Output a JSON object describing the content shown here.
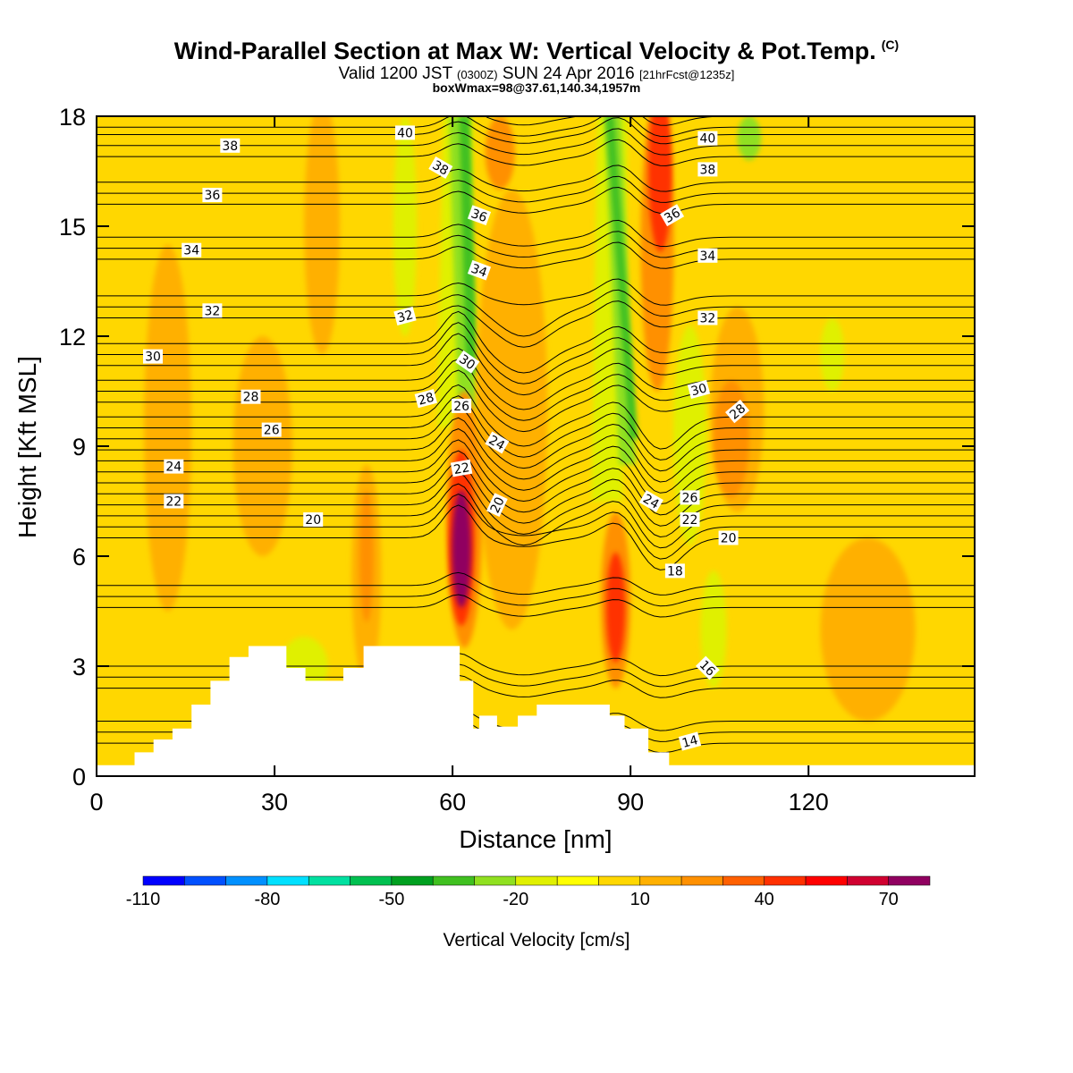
{
  "header": {
    "title": "Wind-Parallel Section at Max W: Vertical Velocity & Pot.Temp.",
    "title_mark": "(C)",
    "subtitle_a": "Valid 1200 JST",
    "subtitle_b": "(0300Z)",
    "subtitle_c": "SUN 24 Apr 2016",
    "subtitle_d": "[21hrFcst@1235z]",
    "subtitle2": "boxWmax=98@37.61,140.34,1957m"
  },
  "chart_data": {
    "type": "heatmap",
    "xlabel": "Distance [nm]",
    "ylabel": "Height [Kft MSL]",
    "xlim": [
      0,
      148
    ],
    "ylim": [
      0,
      18
    ],
    "x_ticks": [
      "0",
      "30",
      "60",
      "90",
      "120"
    ],
    "x_tick_values": [
      0,
      30,
      60,
      90,
      120
    ],
    "y_ticks": [
      "0",
      "3",
      "6",
      "9",
      "12",
      "15",
      "18"
    ],
    "y_tick_values": [
      0,
      3,
      6,
      9,
      12,
      15,
      18
    ],
    "background_level_color": "#ffd700",
    "terrain": [
      {
        "x": 0,
        "h": 0.3
      },
      {
        "x": 6.4,
        "h": 0.3
      },
      {
        "x": 6.4,
        "h": 0.65
      },
      {
        "x": 9.6,
        "h": 0.65
      },
      {
        "x": 9.6,
        "h": 1.0
      },
      {
        "x": 12.8,
        "h": 1.0
      },
      {
        "x": 12.8,
        "h": 1.3
      },
      {
        "x": 16.0,
        "h": 1.3
      },
      {
        "x": 16.0,
        "h": 1.95
      },
      {
        "x": 19.2,
        "h": 1.95
      },
      {
        "x": 19.2,
        "h": 2.6
      },
      {
        "x": 22.4,
        "h": 2.6
      },
      {
        "x": 22.4,
        "h": 3.25
      },
      {
        "x": 25.6,
        "h": 3.25
      },
      {
        "x": 25.6,
        "h": 3.55
      },
      {
        "x": 32.0,
        "h": 3.55
      },
      {
        "x": 32.0,
        "h": 2.95
      },
      {
        "x": 35.2,
        "h": 2.95
      },
      {
        "x": 35.2,
        "h": 2.6
      },
      {
        "x": 41.6,
        "h": 2.6
      },
      {
        "x": 41.6,
        "h": 2.95
      },
      {
        "x": 45.0,
        "h": 2.95
      },
      {
        "x": 45.0,
        "h": 3.55
      },
      {
        "x": 61.2,
        "h": 3.55
      },
      {
        "x": 61.2,
        "h": 2.6
      },
      {
        "x": 63.5,
        "h": 2.6
      },
      {
        "x": 63.5,
        "h": 1.3
      },
      {
        "x": 64.5,
        "h": 1.3
      },
      {
        "x": 64.5,
        "h": 1.65
      },
      {
        "x": 67.5,
        "h": 1.65
      },
      {
        "x": 67.5,
        "h": 1.35
      },
      {
        "x": 71.0,
        "h": 1.35
      },
      {
        "x": 71.0,
        "h": 1.65
      },
      {
        "x": 74.2,
        "h": 1.65
      },
      {
        "x": 74.2,
        "h": 1.95
      },
      {
        "x": 86.5,
        "h": 1.95
      },
      {
        "x": 86.5,
        "h": 1.65
      },
      {
        "x": 89.0,
        "h": 1.65
      },
      {
        "x": 89.0,
        "h": 1.3
      },
      {
        "x": 93.0,
        "h": 1.3
      },
      {
        "x": 93.0,
        "h": 0.65
      },
      {
        "x": 96.5,
        "h": 0.65
      },
      {
        "x": 96.5,
        "h": 0.3
      },
      {
        "x": 148,
        "h": 0.3
      }
    ],
    "w_anomalies": [
      {
        "x": 61.5,
        "y": 6.2,
        "sx": 1.6,
        "sy": 1.6,
        "level": 70
      },
      {
        "x": 61.5,
        "y": 6.5,
        "sx": 2.2,
        "sy": 2.4,
        "level": 40
      },
      {
        "x": 62.0,
        "y": 7.0,
        "sx": 3.0,
        "sy": 3.5,
        "level": 20
      },
      {
        "x": 87.5,
        "y": 4.6,
        "sx": 1.6,
        "sy": 1.5,
        "level": 40
      },
      {
        "x": 87.5,
        "y": 4.8,
        "sx": 2.5,
        "sy": 2.4,
        "level": 20
      },
      {
        "x": 95.0,
        "y": 16.5,
        "sx": 2.0,
        "sy": 2.2,
        "level": 40
      },
      {
        "x": 94.5,
        "y": 14.5,
        "sx": 2.8,
        "sy": 4.0,
        "level": 20
      },
      {
        "x": 107.0,
        "y": 9.2,
        "sx": 3.0,
        "sy": 1.6,
        "level": 20
      },
      {
        "x": 108.0,
        "y": 10.0,
        "sx": 4.5,
        "sy": 2.8,
        "level": 10
      },
      {
        "x": 45.5,
        "y": 6.0,
        "sx": 1.2,
        "sy": 1.8,
        "level": 20
      },
      {
        "x": 45.5,
        "y": 5.5,
        "sx": 2.5,
        "sy": 3.0,
        "level": 10
      },
      {
        "x": 68.0,
        "y": 17.0,
        "sx": 2.5,
        "sy": 1.0,
        "level": 20
      },
      {
        "x": 28.0,
        "y": 9.0,
        "sx": 5.0,
        "sy": 3.0,
        "level": 10
      },
      {
        "x": 12.0,
        "y": 9.5,
        "sx": 4.0,
        "sy": 5.0,
        "level": 10
      },
      {
        "x": 70.0,
        "y": 10.0,
        "sx": 6.0,
        "sy": 6.0,
        "level": 10
      },
      {
        "x": 130.0,
        "y": 4.0,
        "sx": 8.0,
        "sy": 2.5,
        "level": 10
      },
      {
        "x": 38.0,
        "y": 15.0,
        "sx": 3.0,
        "sy": 3.5,
        "level": 10
      },
      {
        "x": 104.0,
        "y": 4.0,
        "sx": 2.2,
        "sy": 1.6,
        "level": -20
      },
      {
        "x": 100.0,
        "y": 9.3,
        "sx": 2.8,
        "sy": 3.0,
        "level": -20
      },
      {
        "x": 124.0,
        "y": 11.5,
        "sx": 2.0,
        "sy": 1.0,
        "level": -20
      },
      {
        "x": 35.0,
        "y": 3.0,
        "sx": 4.0,
        "sy": 0.8,
        "level": -20
      },
      {
        "x": 52.0,
        "y": 15.0,
        "sx": 2.0,
        "sy": 3.0,
        "level": -20
      },
      {
        "x": 110.0,
        "y": 17.4,
        "sx": 2.0,
        "sy": 0.6,
        "level": -30
      }
    ],
    "w_bands": [
      {
        "x0": 60.0,
        "y0": 9.5,
        "x1": 61.0,
        "y1": 18.0,
        "w": 2.6,
        "level": -20
      },
      {
        "x0": 62.5,
        "y0": 10.0,
        "x1": 61.0,
        "y1": 18.0,
        "w": 1.6,
        "level": -30
      },
      {
        "x0": 63.2,
        "y0": 11.0,
        "x1": 62.0,
        "y1": 18.0,
        "w": 0.9,
        "level": -40
      },
      {
        "x0": 86.0,
        "y0": 7.5,
        "x1": 87.0,
        "y1": 18.0,
        "w": 2.6,
        "level": -20
      },
      {
        "x0": 89.5,
        "y0": 8.5,
        "x1": 87.0,
        "y1": 18.0,
        "w": 1.4,
        "level": -30
      },
      {
        "x0": 90.5,
        "y0": 9.2,
        "x1": 86.5,
        "y1": 18.0,
        "w": 0.7,
        "level": -40
      }
    ],
    "theta_contour_levels": [
      14,
      16,
      18,
      20,
      22,
      24,
      26,
      28,
      30,
      32,
      34,
      36,
      38,
      40
    ],
    "theta_labels": [
      {
        "text": "38",
        "x": 22.5,
        "y": 17.2,
        "angle": 0
      },
      {
        "text": "36",
        "x": 19.5,
        "y": 15.85,
        "angle": 0
      },
      {
        "text": "34",
        "x": 16.0,
        "y": 14.35,
        "angle": 0
      },
      {
        "text": "32",
        "x": 19.5,
        "y": 12.7,
        "angle": 0
      },
      {
        "text": "30",
        "x": 9.5,
        "y": 11.45,
        "angle": 0
      },
      {
        "text": "28",
        "x": 26.0,
        "y": 10.35,
        "angle": 0
      },
      {
        "text": "26",
        "x": 29.5,
        "y": 9.45,
        "angle": 0
      },
      {
        "text": "24",
        "x": 13.0,
        "y": 8.45,
        "angle": 0
      },
      {
        "text": "22",
        "x": 13.0,
        "y": 7.5,
        "angle": 0
      },
      {
        "text": "20",
        "x": 36.5,
        "y": 7.0,
        "angle": 0
      },
      {
        "text": "40",
        "x": 52.0,
        "y": 17.55,
        "angle": 0
      },
      {
        "text": "38",
        "x": 58.0,
        "y": 16.6,
        "angle": 30
      },
      {
        "text": "36",
        "x": 64.5,
        "y": 15.3,
        "angle": 20
      },
      {
        "text": "34",
        "x": 64.5,
        "y": 13.8,
        "angle": 20
      },
      {
        "text": "32",
        "x": 52.0,
        "y": 12.55,
        "angle": -15
      },
      {
        "text": "30",
        "x": 62.5,
        "y": 11.3,
        "angle": 35
      },
      {
        "text": "28",
        "x": 55.5,
        "y": 10.3,
        "angle": -15
      },
      {
        "text": "26",
        "x": 61.5,
        "y": 10.1,
        "angle": 0
      },
      {
        "text": "24",
        "x": 67.5,
        "y": 9.1,
        "angle": 30
      },
      {
        "text": "22",
        "x": 61.5,
        "y": 8.4,
        "angle": -10
      },
      {
        "text": "20",
        "x": 67.5,
        "y": 7.4,
        "angle": -65
      },
      {
        "text": "40",
        "x": 103.0,
        "y": 17.4,
        "angle": 0
      },
      {
        "text": "38",
        "x": 103.0,
        "y": 16.55,
        "angle": 0
      },
      {
        "text": "36",
        "x": 97.0,
        "y": 15.3,
        "angle": -30
      },
      {
        "text": "34",
        "x": 103.0,
        "y": 14.2,
        "angle": 0
      },
      {
        "text": "32",
        "x": 103.0,
        "y": 12.5,
        "angle": 0
      },
      {
        "text": "30",
        "x": 101.5,
        "y": 10.55,
        "angle": -15
      },
      {
        "text": "28",
        "x": 108.0,
        "y": 9.95,
        "angle": -40
      },
      {
        "text": "26",
        "x": 100.0,
        "y": 7.6,
        "angle": 0
      },
      {
        "text": "24",
        "x": 93.5,
        "y": 7.5,
        "angle": 30
      },
      {
        "text": "22",
        "x": 100.0,
        "y": 7.0,
        "angle": 0
      },
      {
        "text": "20",
        "x": 106.5,
        "y": 6.5,
        "angle": 0
      },
      {
        "text": "18",
        "x": 97.5,
        "y": 5.6,
        "angle": 0
      },
      {
        "text": "16",
        "x": 103.0,
        "y": 2.95,
        "angle": 45
      },
      {
        "text": "14",
        "x": 100.0,
        "y": 0.95,
        "angle": -15
      }
    ],
    "colorbar": {
      "title": "Vertical Velocity [cm/s]",
      "labels": [
        "-110",
        "-80",
        "-50",
        "-20",
        "10",
        "40",
        "70"
      ],
      "levels": [
        -110,
        -100,
        -90,
        -80,
        -70,
        -60,
        -50,
        -40,
        -30,
        -20,
        -10,
        0,
        10,
        20,
        30,
        40,
        50,
        60,
        70,
        80
      ],
      "colors": [
        "#0000ff",
        "#0050ff",
        "#0090ff",
        "#00e0ff",
        "#00e0a0",
        "#00c050",
        "#00a020",
        "#40c020",
        "#90e020",
        "#e0f000",
        "#ffff00",
        "#ffd700",
        "#ffb000",
        "#ff9000",
        "#ff6000",
        "#ff3000",
        "#ff0000",
        "#d00030",
        "#900060"
      ]
    }
  }
}
